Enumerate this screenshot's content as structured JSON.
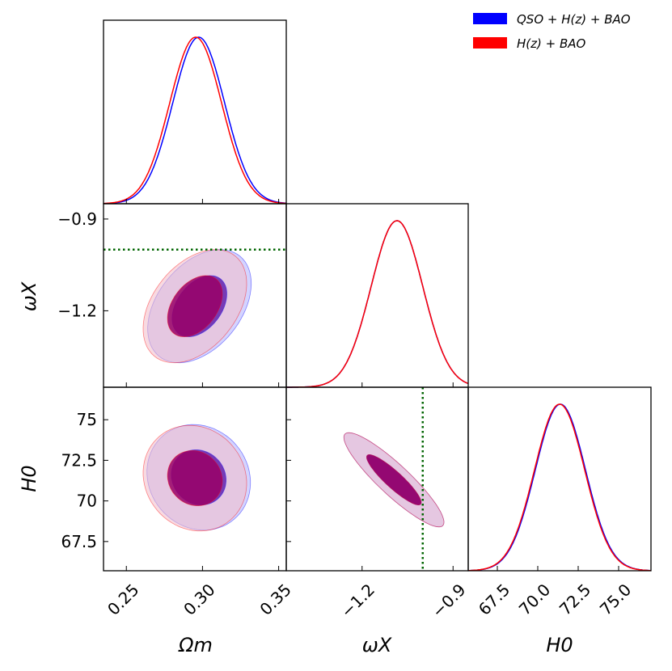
{
  "chart_data": {
    "type": "triangle-corner-plot",
    "parameters": [
      {
        "symbol": "Ω_m",
        "label": "Ωm",
        "range": [
          0.235,
          0.355
        ],
        "ticks": [
          0.25,
          0.3,
          0.35
        ],
        "tick_labels": [
          "0.25",
          "0.30",
          "0.35"
        ]
      },
      {
        "symbol": "ω_X",
        "label": "ωX",
        "range": [
          -1.45,
          -0.85
        ],
        "ticks": [
          -1.2,
          -0.9
        ],
        "tick_labels": [
          "−1.2",
          "−0.9"
        ]
      },
      {
        "symbol": "H_0",
        "label": "H0",
        "range": [
          65.7,
          77.0
        ],
        "ticks": [
          67.5,
          70.0,
          72.5,
          75.0
        ],
        "tick_labels_x": [
          "67.5",
          "70.0",
          "72.5",
          "75.0"
        ],
        "tick_labels_y": [
          "67.5",
          "70",
          "72.5",
          "75"
        ]
      }
    ],
    "reference_lines": {
      "w_X": -1.0
    },
    "series": [
      {
        "name": "QSO + H(z) + BAO",
        "color": "#0000ff",
        "marginals": {
          "Omega_m": {
            "mean": 0.2975,
            "sigma": 0.017
          },
          "w_X": {
            "mean": -1.085,
            "sigma": 0.085
          },
          "H0": {
            "mean": 71.4,
            "sigma": 1.55
          }
        },
        "contours": {
          "Omega_m_vs_w_X": {
            "center": [
              0.298,
              -1.185
            ],
            "ellipses_1sigma": [
              0.018,
              0.1,
              0.4
            ],
            "ellipses_2sigma": [
              0.034,
              0.185,
              0.4
            ]
          },
          "Omega_m_vs_H0": {
            "center": [
              0.2975,
              71.45
            ],
            "ellipses_1sigma": [
              0.018,
              1.7,
              -0.1
            ],
            "ellipses_2sigma": [
              0.034,
              3.25,
              -0.1
            ]
          },
          "w_X_vs_H0": {
            "center": [
              -1.095,
              71.3
            ],
            "ellipses_1sigma": [
              0.09,
              1.55,
              -0.9
            ],
            "ellipses_2sigma": [
              0.165,
              2.9,
              -0.9
            ]
          }
        }
      },
      {
        "name": "H(z) + BAO",
        "color": "#ff0000",
        "marginals": {
          "Omega_m": {
            "mean": 0.2955,
            "sigma": 0.017
          },
          "w_X": {
            "mean": -1.085,
            "sigma": 0.085
          },
          "H0": {
            "mean": 71.35,
            "sigma": 1.55
          }
        },
        "contours": {
          "Omega_m_vs_w_X": {
            "center": [
              0.295,
              -1.185
            ],
            "ellipses_1sigma": [
              0.018,
              0.1,
              0.4
            ],
            "ellipses_2sigma": [
              0.034,
              0.185,
              0.4
            ]
          },
          "Omega_m_vs_H0": {
            "center": [
              0.295,
              71.4
            ],
            "ellipses_1sigma": [
              0.018,
              1.7,
              -0.1
            ],
            "ellipses_2sigma": [
              0.034,
              3.25,
              -0.1
            ]
          },
          "w_X_vs_H0": {
            "center": [
              -1.095,
              71.3
            ],
            "ellipses_1sigma": [
              0.09,
              1.55,
              -0.9
            ],
            "ellipses_2sigma": [
              0.165,
              2.9,
              -0.9
            ]
          }
        }
      }
    ],
    "legend": {
      "placement": "top-right",
      "entries": [
        "QSO + H(z) + BAO",
        "H(z) + BAO"
      ]
    }
  },
  "legend_labels": [
    "QSO + H(z) + BAO",
    "H(z) + BAO"
  ],
  "axis_labels": {
    "x1": "Ωm",
    "x2": "ωX",
    "x3": "H0",
    "y2": "ωX",
    "y3": "H0"
  },
  "colors": {
    "blue": "#0000ff",
    "red": "#ff0000",
    "overlap_dark": "#990066",
    "reference_line": "#006400"
  }
}
